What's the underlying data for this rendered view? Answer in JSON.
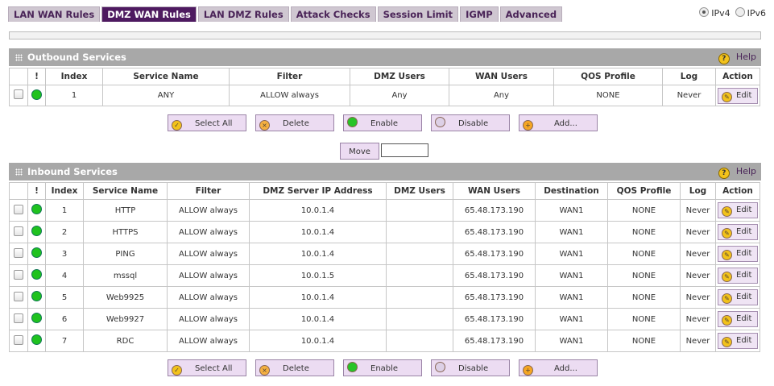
{
  "tabs": [
    "LAN WAN Rules",
    "DMZ WAN Rules",
    "LAN DMZ Rules",
    "Attack Checks",
    "Session Limit",
    "IGMP",
    "Advanced"
  ],
  "ip_options": [
    "IPv4",
    "IPv6"
  ],
  "buttons": [
    "Select All",
    "Delete",
    "Enable",
    "Disable",
    "Add..."
  ],
  "move": "Move",
  "outbound": {
    "title": "Outbound Services",
    "help": "Help",
    "edit": "Edit",
    "columns": [
      "!",
      "Index",
      "Service Name",
      "Filter",
      "DMZ Users",
      "WAN Users",
      "QOS Profile",
      "Log",
      "Action"
    ],
    "rows": [
      [
        "1",
        "ANY",
        "ALLOW always",
        "Any",
        "Any",
        "NONE",
        "Never"
      ]
    ]
  },
  "inbound": {
    "title": "Inbound Services",
    "help": "Help",
    "edit": "Edit",
    "columns": [
      "!",
      "Index",
      "Service Name",
      "Filter",
      "DMZ Server IP Address",
      "DMZ Users",
      "WAN Users",
      "Destination",
      "QOS Profile",
      "Log",
      "Action"
    ],
    "rows": [
      [
        "1",
        "HTTP",
        "ALLOW always",
        "10.0.1.4",
        "",
        "65.48.173.190",
        "WAN1",
        "NONE",
        "Never"
      ],
      [
        "2",
        "HTTPS",
        "ALLOW always",
        "10.0.1.4",
        "",
        "65.48.173.190",
        "WAN1",
        "NONE",
        "Never"
      ],
      [
        "3",
        "PING",
        "ALLOW always",
        "10.0.1.4",
        "",
        "65.48.173.190",
        "WAN1",
        "NONE",
        "Never"
      ],
      [
        "4",
        "mssql",
        "ALLOW always",
        "10.0.1.5",
        "",
        "65.48.173.190",
        "WAN1",
        "NONE",
        "Never"
      ],
      [
        "5",
        "Web9925",
        "ALLOW always",
        "10.0.1.4",
        "",
        "65.48.173.190",
        "WAN1",
        "NONE",
        "Never"
      ],
      [
        "6",
        "Web9927",
        "ALLOW always",
        "10.0.1.4",
        "",
        "65.48.173.190",
        "WAN1",
        "NONE",
        "Never"
      ],
      [
        "7",
        "RDC",
        "ALLOW always",
        "10.0.1.4",
        "",
        "65.48.173.190",
        "WAN1",
        "NONE",
        "Never"
      ]
    ]
  }
}
